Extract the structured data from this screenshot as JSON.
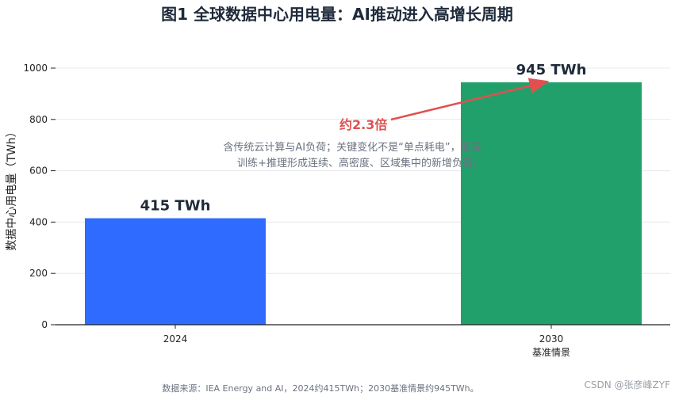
{
  "chart_data": {
    "type": "bar",
    "title": "图1  全球数据中心用电量：AI推动进入高增长周期",
    "xlabel": "",
    "ylabel": "数据中心用电量（TWh）",
    "categories": [
      "2024",
      "2030"
    ],
    "category_sublabels": [
      "",
      "基准情景"
    ],
    "values": [
      415,
      945
    ],
    "bar_colors": [
      "#2f6bff",
      "#22a06b"
    ],
    "data_labels": [
      "415 TWh",
      "945 TWh"
    ],
    "ylim": [
      0,
      1050
    ],
    "yticks": [
      0,
      200,
      400,
      600,
      800,
      1000
    ],
    "grid": true,
    "annotations": {
      "ratio_label": "约2.3倍",
      "ratio_color": "#e05050",
      "note_lines": [
        "含传统云计算与AI负荷；关键变化不是“单点耗电”，而是",
        "训练+推理形成连续、高密度、区域集中的新增负荷。"
      ]
    }
  },
  "footer": {
    "source": "数据来源：IEA Energy and AI，2024约415TWh；2030基准情景约945TWh。",
    "watermark": "CSDN @张彦峰ZYF"
  }
}
